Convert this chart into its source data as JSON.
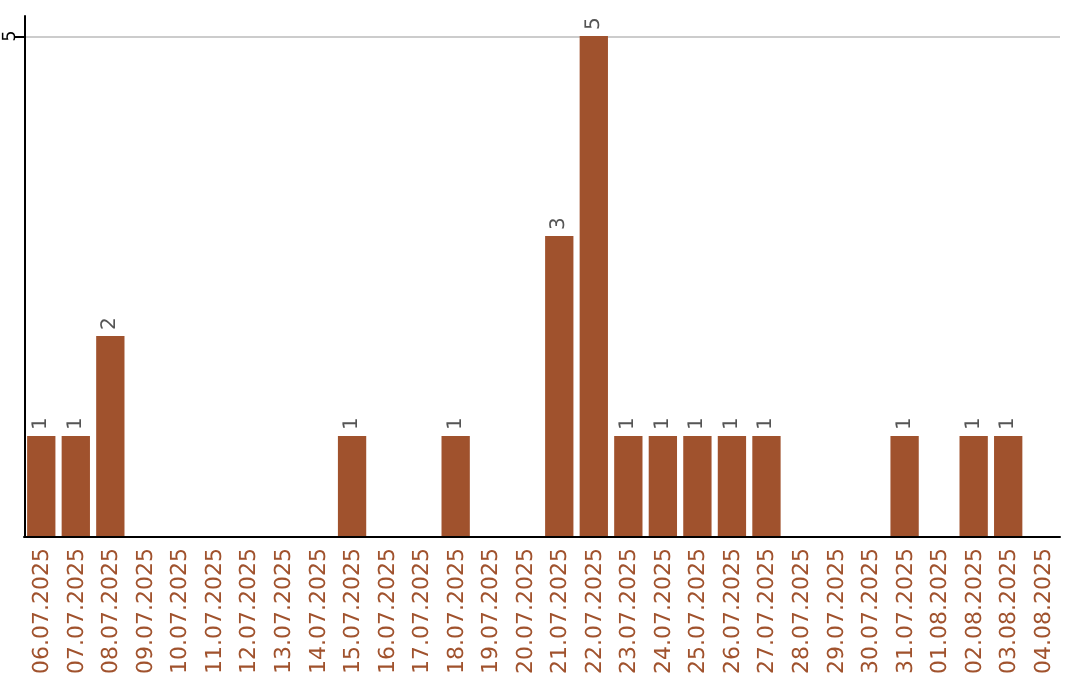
{
  "chart_data": {
    "type": "bar",
    "categories": [
      "06.07.2025",
      "07.07.2025",
      "08.07.2025",
      "09.07.2025",
      "10.07.2025",
      "11.07.2025",
      "12.07.2025",
      "13.07.2025",
      "14.07.2025",
      "15.07.2025",
      "16.07.2025",
      "17.07.2025",
      "18.07.2025",
      "19.07.2025",
      "20.07.2025",
      "21.07.2025",
      "22.07.2025",
      "23.07.2025",
      "24.07.2025",
      "25.07.2025",
      "26.07.2025",
      "27.07.2025",
      "28.07.2025",
      "29.07.2025",
      "30.07.2025",
      "31.07.2025",
      "01.08.2025",
      "02.08.2025",
      "03.08.2025",
      "04.08.2025"
    ],
    "values": [
      1,
      1,
      2,
      0,
      0,
      0,
      0,
      0,
      0,
      1,
      0,
      0,
      1,
      0,
      0,
      3,
      5,
      1,
      1,
      1,
      1,
      1,
      0,
      0,
      0,
      1,
      0,
      1,
      1,
      0
    ],
    "value_labels": [
      "1",
      "1",
      "2",
      null,
      null,
      null,
      null,
      null,
      null,
      "1",
      null,
      null,
      "1",
      null,
      null,
      "3",
      "5",
      "1",
      "1",
      "1",
      "1",
      "1",
      null,
      null,
      null,
      "1",
      null,
      "1",
      "1",
      null
    ],
    "color": "#a0522d",
    "ylim": [
      0,
      5.2
    ],
    "yticks": [
      5
    ],
    "grid": "y"
  }
}
